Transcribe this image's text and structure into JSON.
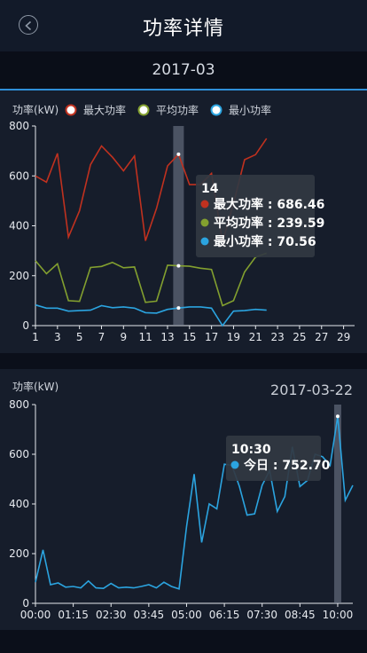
{
  "header": {
    "title": "功率详情",
    "back_icon": "back-arrow-icon"
  },
  "month": {
    "label": "2017-03"
  },
  "monthly_chart": {
    "chart_data": {
      "type": "line",
      "ylabel": "功率(kW)",
      "ylim": [
        0,
        800
      ],
      "y_ticks": [
        0,
        200,
        400,
        600,
        800
      ],
      "x_ticks": [
        1,
        3,
        5,
        7,
        9,
        11,
        13,
        15,
        17,
        19,
        21,
        23,
        25,
        27,
        29
      ],
      "xlim": [
        1,
        30
      ],
      "x": [
        1,
        2,
        3,
        4,
        5,
        6,
        7,
        8,
        9,
        10,
        11,
        12,
        13,
        14,
        15,
        16,
        17,
        18,
        19,
        20,
        21,
        22
      ],
      "series": [
        {
          "name": "最大功率",
          "color": "#c0311f",
          "values": [
            600,
            575,
            690,
            355,
            460,
            645,
            720,
            675,
            620,
            680,
            340,
            470,
            640,
            686.46,
            565,
            565,
            610,
            335,
            490,
            665,
            685,
            750
          ]
        },
        {
          "name": "平均功率",
          "color": "#83a02f",
          "values": [
            260,
            208,
            248,
            100,
            97,
            233,
            237,
            253,
            232,
            235,
            93,
            98,
            242,
            239.59,
            238,
            230,
            225,
            80,
            100,
            215,
            275,
            290
          ]
        },
        {
          "name": "最小功率",
          "color": "#2ba4e0",
          "values": [
            83,
            70,
            70,
            58,
            60,
            62,
            80,
            72,
            75,
            70,
            52,
            50,
            65,
            70.56,
            75,
            75,
            70,
            0,
            58,
            60,
            65,
            62
          ]
        }
      ],
      "legend": "top",
      "highlight_x": 14,
      "tooltip": {
        "title": "14",
        "rows": [
          {
            "label": "最大功率 : 686.46",
            "color": "#c0311f"
          },
          {
            "label": "平均功率 : 239.59",
            "color": "#83a02f"
          },
          {
            "label": "最小功率 : 70.56",
            "color": "#2ba4e0"
          }
        ]
      }
    }
  },
  "daily_chart": {
    "date_label": "2017-03-22",
    "chart_data": {
      "type": "line",
      "ylabel": "功率(kW)",
      "ylim": [
        0,
        800
      ],
      "y_ticks": [
        0,
        200,
        400,
        600,
        800
      ],
      "x_ticks": [
        "00:00",
        "01:15",
        "02:30",
        "03:45",
        "05:00",
        "06:15",
        "07:30",
        "08:45",
        "10:00"
      ],
      "series": [
        {
          "name": "今日",
          "color": "#2ba4e0",
          "values": [
            85,
            215,
            75,
            82,
            65,
            68,
            62,
            90,
            62,
            60,
            80,
            62,
            65,
            62,
            68,
            75,
            62,
            85,
            68,
            58,
            310,
            520,
            245,
            400,
            380,
            560,
            555,
            470,
            355,
            360,
            475,
            535,
            370,
            430,
            630,
            470,
            495,
            600,
            590,
            555,
            752.7,
            415,
            475
          ]
        }
      ],
      "highlight_index": 40,
      "tooltip": {
        "title": "10:30",
        "rows": [
          {
            "label": "今日 : 752.70",
            "color": "#2ba4e0"
          }
        ]
      }
    }
  }
}
